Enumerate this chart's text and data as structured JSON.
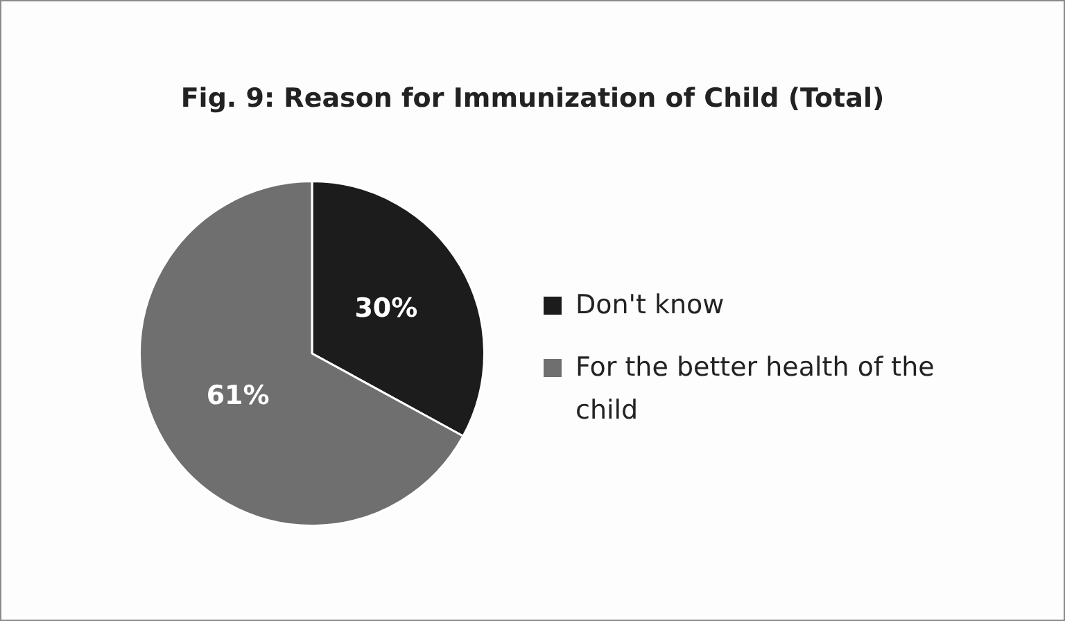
{
  "chart_data": {
    "type": "pie",
    "title": "Fig. 9: Reason for Immunization of Child (Total)",
    "categories": [
      "Don't know",
      "For the better health of the child"
    ],
    "values": [
      30,
      61
    ],
    "colors": [
      "#1c1c1c",
      "#6f6f6f"
    ],
    "value_labels": [
      "30%",
      "61%"
    ],
    "legend": "right"
  }
}
